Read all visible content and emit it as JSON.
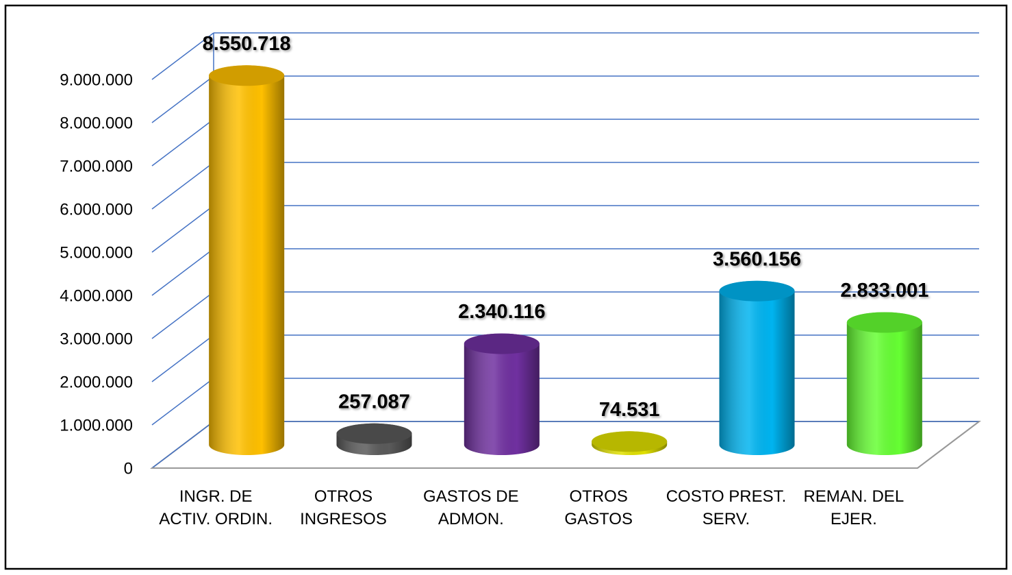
{
  "chart_data": {
    "type": "bar3d",
    "categories": [
      "INGR. DE ACTIV. ORDIN.",
      "OTROS INGRESOS",
      "GASTOS DE ADMON.",
      "OTROS GASTOS",
      "COSTO PREST. SERV.",
      "REMAN. DEL EJER."
    ],
    "values": [
      8550718,
      257087,
      2340116,
      74531,
      3560156,
      2833001
    ],
    "value_labels": [
      "8.550.718",
      "257.087",
      "2.340.116",
      "74.531",
      "3.560.156",
      "2.833.001"
    ],
    "colors": [
      "#ffc000",
      "#5a5a5a",
      "#7030a0",
      "#e0e000",
      "#00b4f0",
      "#66ff33"
    ],
    "ylim": [
      0,
      9000000
    ],
    "yticks": [
      0,
      {
        "value": 1000000,
        "label": "1.000.000"
      },
      {
        "value": 2000000,
        "label": "2.000.000"
      },
      {
        "value": 3000000,
        "label": "3.000.000"
      },
      {
        "value": 4000000,
        "label": "4.000.000"
      },
      {
        "value": 5000000,
        "label": "5.000.000"
      },
      {
        "value": 6000000,
        "label": "6.000.000"
      },
      {
        "value": 7000000,
        "label": "7.000.000"
      },
      {
        "value": 8000000,
        "label": "8.000.000"
      },
      {
        "value": 9000000,
        "label": "9.000.000"
      }
    ],
    "grid": true
  }
}
